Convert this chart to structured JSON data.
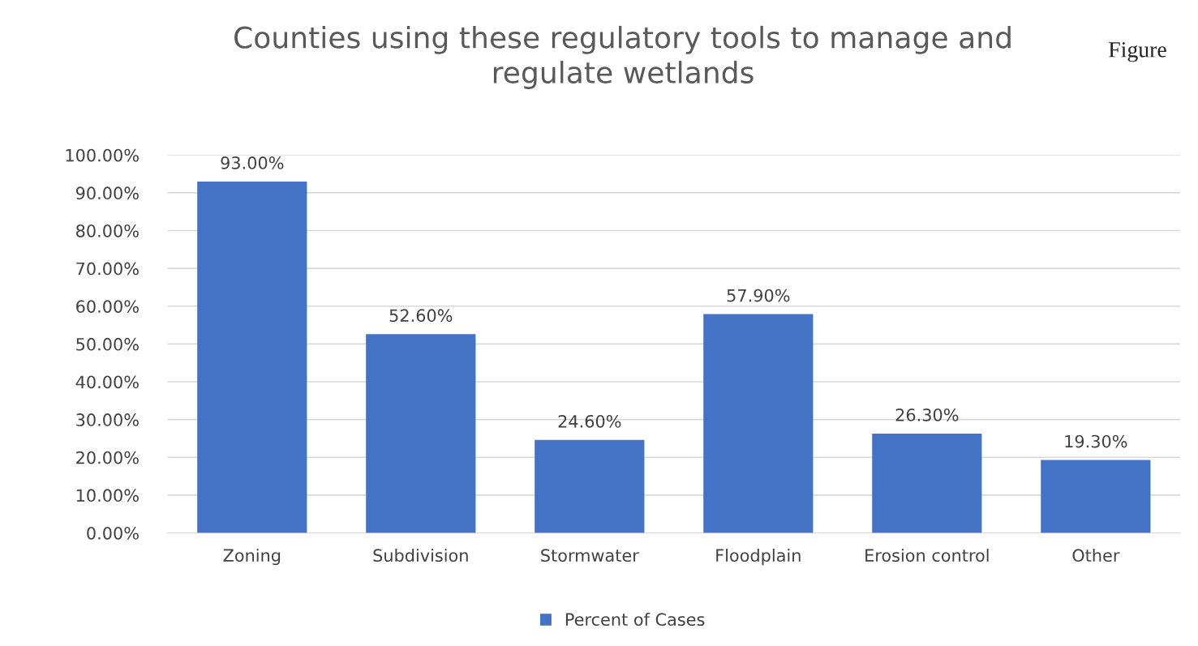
{
  "chart_data": {
    "type": "bar",
    "title": "Counties using these regulatory tools to manage and\nregulate wetlands",
    "annotations": [
      "Figure"
    ],
    "categories": [
      "Zoning",
      "Subdivision",
      "Stormwater",
      "Floodplain",
      "Erosion control",
      "Other"
    ],
    "series": [
      {
        "name": "Percent of Cases",
        "color": "#4472c4",
        "values": [
          93.0,
          52.6,
          24.6,
          57.9,
          26.3,
          19.3
        ]
      }
    ],
    "value_labels": [
      "93.00%",
      "52.60%",
      "24.60%",
      "57.90%",
      "26.30%",
      "19.30%"
    ],
    "ylim": [
      0,
      100
    ],
    "yticks": [
      {
        "value": 0,
        "label": "0.00%"
      },
      {
        "value": 10,
        "label": "10.00%"
      },
      {
        "value": 20,
        "label": "20.00%"
      },
      {
        "value": 30,
        "label": "30.00%"
      },
      {
        "value": 40,
        "label": "40.00%"
      },
      {
        "value": 50,
        "label": "50.00%"
      },
      {
        "value": 60,
        "label": "60.00%"
      },
      {
        "value": 70,
        "label": "70.00%"
      },
      {
        "value": 80,
        "label": "80.00%"
      },
      {
        "value": 90,
        "label": "90.00%"
      },
      {
        "value": 100,
        "label": "100.00%"
      }
    ],
    "grid": "y",
    "legend": "bottom"
  }
}
